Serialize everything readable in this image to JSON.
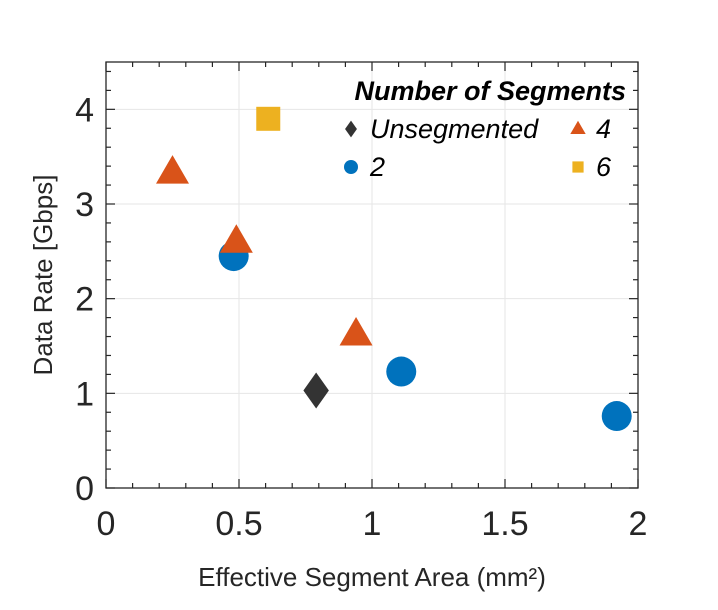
{
  "chart_data": {
    "type": "scatter",
    "title": "",
    "xlabel": "Effective Segment Area (mm²)",
    "ylabel": "Data Rate [Gbps]",
    "xlim": [
      0,
      2
    ],
    "ylim": [
      0,
      4.5
    ],
    "xticks": [
      0,
      0.5,
      1,
      1.5,
      2
    ],
    "xtick_labels": [
      "0",
      "0.5",
      "1",
      "1.5",
      "2"
    ],
    "yticks": [
      0,
      1,
      2,
      3,
      4
    ],
    "ytick_labels": [
      "0",
      "1",
      "2",
      "3",
      "4"
    ],
    "grid": true,
    "legend_title": "Number of Segments",
    "legend_position": "top-right",
    "series": [
      {
        "name": "Unsegmented",
        "marker": "diamond",
        "color": "#333333",
        "points": [
          [
            0.79,
            1.03
          ]
        ]
      },
      {
        "name": "2",
        "marker": "circle",
        "color": "#0072BD",
        "points": [
          [
            0.48,
            2.45
          ],
          [
            1.11,
            1.23
          ],
          [
            1.92,
            0.76
          ]
        ]
      },
      {
        "name": "4",
        "marker": "triangle",
        "color": "#D95319",
        "points": [
          [
            0.25,
            3.33
          ],
          [
            0.49,
            2.6
          ],
          [
            0.94,
            1.62
          ]
        ]
      },
      {
        "name": "6",
        "marker": "square",
        "color": "#EDB120",
        "points": [
          [
            0.61,
            3.9
          ]
        ]
      }
    ]
  }
}
